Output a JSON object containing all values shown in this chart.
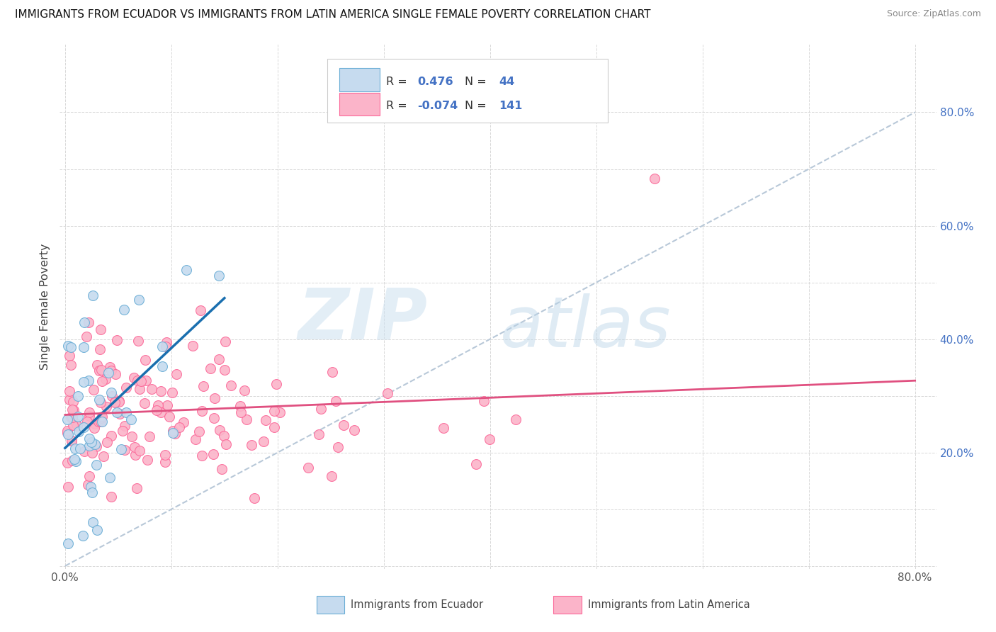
{
  "title": "IMMIGRANTS FROM ECUADOR VS IMMIGRANTS FROM LATIN AMERICA SINGLE FEMALE POVERTY CORRELATION CHART",
  "source": "Source: ZipAtlas.com",
  "ylabel": "Single Female Poverty",
  "r_ecuador": 0.476,
  "n_ecuador": 44,
  "r_latin": -0.074,
  "n_latin": 141,
  "ecuador_face": "#c6dbef",
  "ecuador_edge": "#6baed6",
  "latin_face": "#fbb4c9",
  "latin_edge": "#fb6a9a",
  "trend_ecuador": "#1a6faf",
  "trend_latin": "#e05080",
  "diagonal_color": "#b8c8d8",
  "watermark_zip_color": "#cce0f0",
  "watermark_atlas_color": "#b8d4e8",
  "legend_box_color": "#e8e8e8",
  "right_tick_color": "#4472c4",
  "bottom_legend_label1": "Immigrants from Ecuador",
  "bottom_legend_label2": "Immigrants from Latin America"
}
